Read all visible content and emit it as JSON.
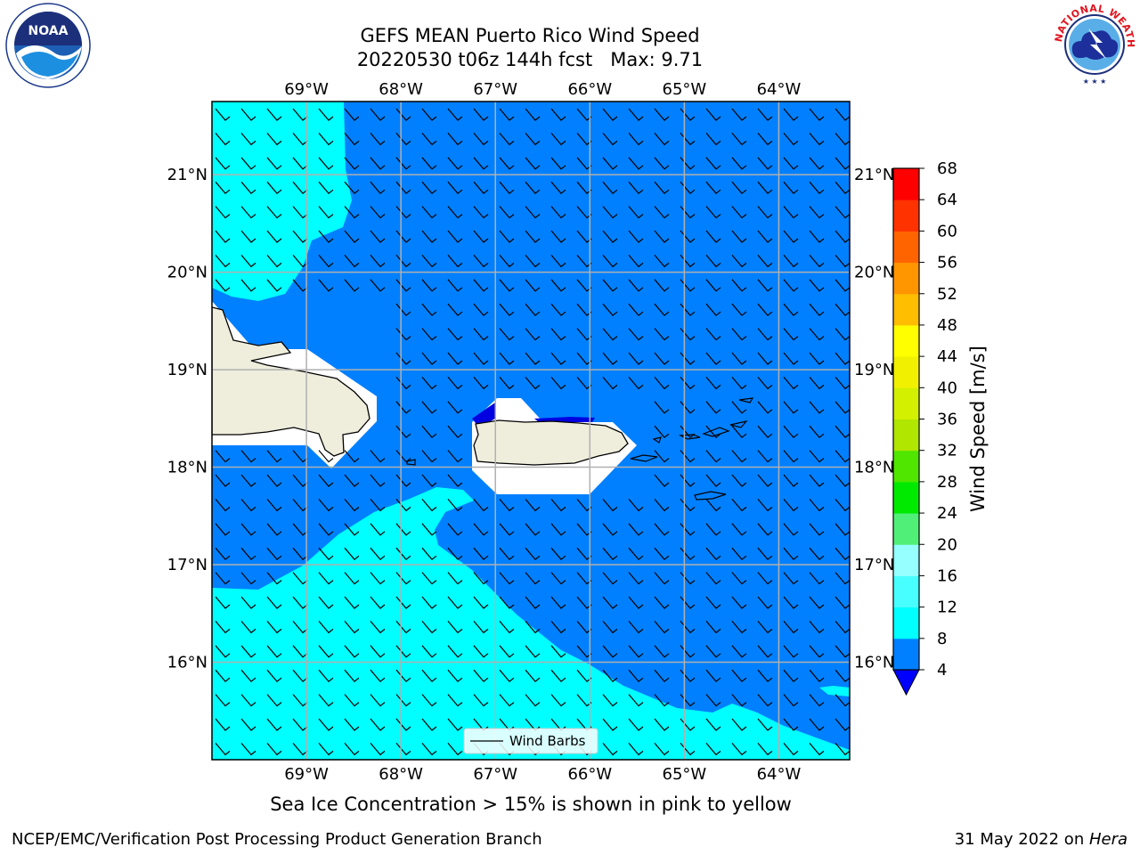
{
  "header": {
    "title_line1": "GEFS MEAN Puerto Rico Wind Speed",
    "title_line2": "20220530 t06z 144h fcst   Max: 9.71"
  },
  "logos": {
    "left": {
      "icon": "noaa-logo-icon",
      "text": "NOAA"
    },
    "right": {
      "icon": "nws-logo-icon",
      "text": "NATIONAL WEATHER SERVICE"
    }
  },
  "map": {
    "lon_labels": [
      "69°W",
      "68°W",
      "67°W",
      "66°W",
      "65°W",
      "64°W"
    ],
    "lat_labels": [
      "21°N",
      "20°N",
      "19°N",
      "18°N",
      "17°N",
      "16°N"
    ],
    "lon_values": [
      -69,
      -68,
      -67,
      -66,
      -65,
      -64
    ],
    "lat_values": [
      21,
      20,
      19,
      18,
      17,
      16
    ],
    "extent": {
      "lon_min": -70.0,
      "lon_max": -63.25,
      "lat_min": 15.0,
      "lat_max": 21.75
    },
    "legend_label": "Wind Barbs",
    "colors": {
      "ocean_light": "#00ffff",
      "ocean_dark": "#0080ff",
      "land": "#efeedd",
      "grid": "#b0b0b0"
    }
  },
  "colorbar": {
    "label": "Wind Speed [m/s]",
    "ticks": [
      "68",
      "64",
      "60",
      "56",
      "52",
      "48",
      "44",
      "40",
      "36",
      "32",
      "28",
      "24",
      "20",
      "16",
      "12",
      "8",
      "4"
    ],
    "levels": [
      4,
      8,
      12,
      16,
      20,
      24,
      28,
      32,
      36,
      40,
      44,
      48,
      52,
      56,
      60,
      64,
      68
    ],
    "colors": [
      "#0080ff",
      "#00ffff",
      "#48ffff",
      "#96ffff",
      "#50f078",
      "#00ea00",
      "#50e600",
      "#b0e600",
      "#d2f000",
      "#f0f000",
      "#ffff00",
      "#ffbe00",
      "#ff9600",
      "#ff6400",
      "#ff3200",
      "#ff0000"
    ],
    "under_color": "#0000ff"
  },
  "note": "Sea Ice Concentration > 15% is shown in pink to yellow",
  "footer": {
    "left": "NCEP/EMC/Verification Post Processing Product Generation Branch",
    "right_date": "31 May 2022 on ",
    "right_host": "Hera"
  }
}
